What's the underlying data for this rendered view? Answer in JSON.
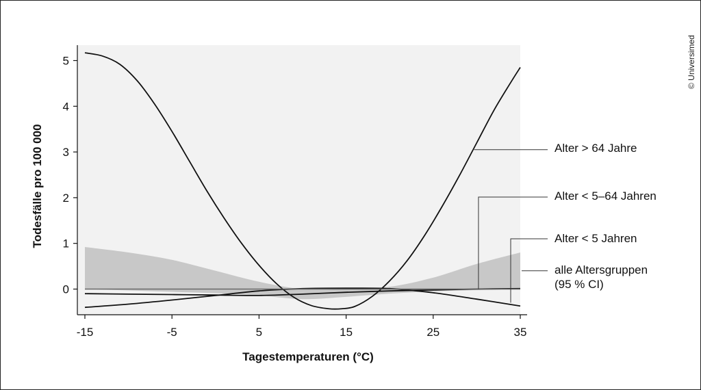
{
  "copyright": "© Universimed",
  "chart_data": {
    "type": "line",
    "title": "",
    "xlabel": "Tagestemperaturen (°C)",
    "ylabel": "Todesfälle pro 100 000",
    "xlim": [
      -15,
      35
    ],
    "ylim": [
      -0.55,
      5.35
    ],
    "xticks": [
      -15,
      -5,
      5,
      15,
      25,
      35
    ],
    "yticks": [
      0,
      1,
      2,
      3,
      4,
      5
    ],
    "grid": false,
    "colors": {
      "plot_bg": "#f2f2f2",
      "ci_band": "#c8c8c8",
      "line": "#111111"
    },
    "series": [
      {
        "name": "Alter > 64 Jahre",
        "x": [
          -15,
          -13,
          -11,
          -9,
          -7,
          -5,
          -3,
          -1,
          1,
          3,
          5,
          7,
          9,
          11,
          13,
          14.5,
          16,
          18,
          20,
          22,
          24,
          26,
          28,
          30,
          32,
          34,
          35
        ],
        "y": [
          5.17,
          5.1,
          4.92,
          4.56,
          4.05,
          3.45,
          2.8,
          2.15,
          1.55,
          1.0,
          0.52,
          0.12,
          -0.18,
          -0.36,
          -0.43,
          -0.43,
          -0.38,
          -0.16,
          0.18,
          0.62,
          1.17,
          1.8,
          2.48,
          3.2,
          3.92,
          4.55,
          4.85
        ]
      },
      {
        "name": "Alter < 5–64 Jahren",
        "x": [
          -15,
          -10,
          -5,
          0,
          5,
          10,
          15,
          20,
          25,
          30,
          35
        ],
        "y": [
          -0.1,
          -0.11,
          -0.12,
          -0.13,
          -0.14,
          -0.11,
          -0.07,
          -0.04,
          -0.02,
          0.0,
          0.01
        ]
      },
      {
        "name": "Alter < 5 Jahren",
        "x": [
          -15,
          -10,
          -5,
          0,
          5,
          10,
          15,
          20,
          25,
          30,
          35
        ],
        "y": [
          -0.4,
          -0.33,
          -0.24,
          -0.14,
          -0.04,
          0.01,
          0.02,
          0.01,
          -0.08,
          -0.22,
          -0.37
        ]
      },
      {
        "name": "alle Altersgruppen (95 % CI)",
        "x": [
          -15,
          -10,
          -5,
          0,
          5,
          10,
          15,
          20,
          25,
          30,
          35
        ],
        "y_upper": [
          0.92,
          0.8,
          0.64,
          0.4,
          0.16,
          0.0,
          0.0,
          0.05,
          0.25,
          0.55,
          0.8
        ],
        "y_lower": [
          0.0,
          -0.03,
          -0.06,
          -0.09,
          -0.14,
          -0.22,
          -0.17,
          -0.1,
          -0.05,
          -0.02,
          0.0
        ],
        "y_mid": [
          0.0,
          0.0,
          0.0,
          0.0,
          0.0,
          0.0,
          0.0,
          0.0,
          0.0,
          0.0,
          0.0
        ]
      }
    ],
    "annotations": [
      {
        "text": "Alter > 64 Jahre",
        "lines": [
          "Alter > 64 Jahre"
        ],
        "anchor_x": 29.7,
        "anchor_y": 3.05
      },
      {
        "text": "Alter < 5–64 Jahren",
        "lines": [
          "Alter < 5–64 Jahren"
        ],
        "anchor_x": 30.2,
        "anchor_y": 0.0
      },
      {
        "text": "Alter < 5 Jahren",
        "lines": [
          "Alter < 5 Jahren"
        ],
        "anchor_x": 33.9,
        "anchor_y": -0.3
      },
      {
        "text": "alle Altersgruppen (95 % CI)",
        "lines": [
          "alle Altersgruppen",
          "(95 % CI)"
        ],
        "anchor_x": 35,
        "anchor_y": 0.4
      }
    ]
  }
}
